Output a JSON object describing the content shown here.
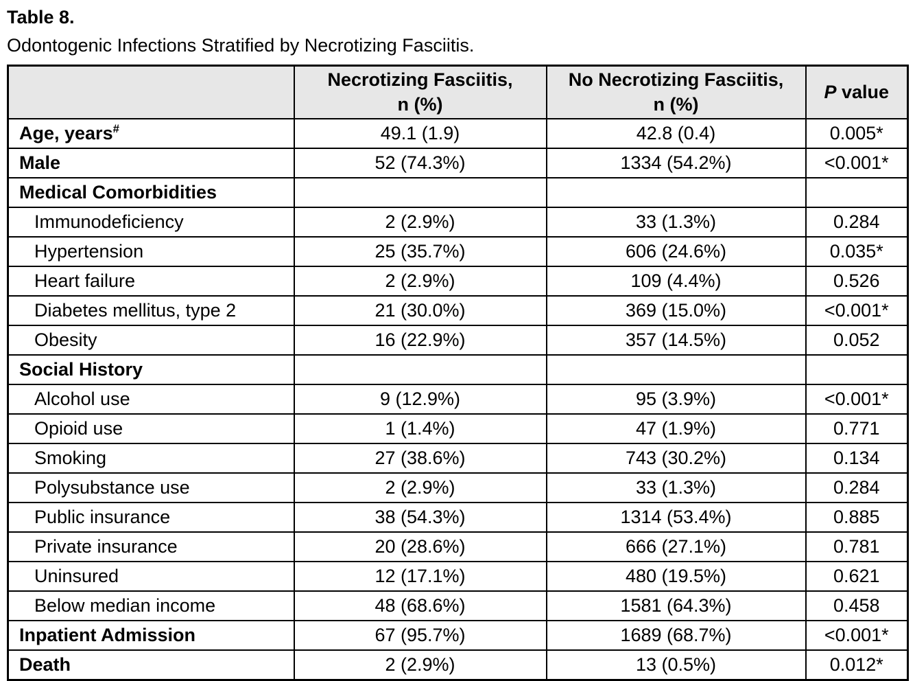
{
  "title": "Table 8.",
  "subtitle": "Odontogenic Infections Stratified by Necrotizing Fasciitis.",
  "colors": {
    "header_bg": "#e7e7e7",
    "border": "#000000",
    "text": "#000000"
  },
  "table": {
    "headers": {
      "row_label": "",
      "nf_line1": "Necrotizing Fasciitis,",
      "nf_line2": "n (%)",
      "no_nf_line1": "No Necrotizing Fasciitis,",
      "no_nf_line2": "n (%)",
      "p_italic": "P",
      "p_rest": " value"
    },
    "rows": [
      {
        "label": "Age, years",
        "sup": "#",
        "style": "bold",
        "nf": "49.1 (1.9)",
        "no_nf": "42.8 (0.4)",
        "p": "0.005*"
      },
      {
        "label": "Male",
        "style": "bold",
        "nf": "52 (74.3%)",
        "no_nf": "1334 (54.2%)",
        "p": "<0.001*"
      },
      {
        "label": "Medical Comorbidities",
        "style": "section",
        "nf": "",
        "no_nf": "",
        "p": ""
      },
      {
        "label": "Immunodeficiency",
        "style": "indent",
        "nf": "2 (2.9%)",
        "no_nf": "33 (1.3%)",
        "p": "0.284"
      },
      {
        "label": "Hypertension",
        "style": "indent",
        "nf": "25 (35.7%)",
        "no_nf": "606 (24.6%)",
        "p": "0.035*"
      },
      {
        "label": "Heart failure",
        "style": "indent",
        "nf": "2 (2.9%)",
        "no_nf": "109 (4.4%)",
        "p": "0.526"
      },
      {
        "label": "Diabetes mellitus, type 2",
        "style": "indent",
        "nf": "21 (30.0%)",
        "no_nf": "369 (15.0%)",
        "p": "<0.001*"
      },
      {
        "label": "Obesity",
        "style": "indent",
        "nf": "16 (22.9%)",
        "no_nf": "357 (14.5%)",
        "p": "0.052"
      },
      {
        "label": "Social History",
        "style": "section",
        "nf": "",
        "no_nf": "",
        "p": ""
      },
      {
        "label": "Alcohol use",
        "style": "indent",
        "nf": "9 (12.9%)",
        "no_nf": "95 (3.9%)",
        "p": "<0.001*"
      },
      {
        "label": "Opioid use",
        "style": "indent",
        "nf": "1 (1.4%)",
        "no_nf": "47 (1.9%)",
        "p": "0.771"
      },
      {
        "label": "Smoking",
        "style": "indent",
        "nf": "27 (38.6%)",
        "no_nf": "743 (30.2%)",
        "p": "0.134"
      },
      {
        "label": "Polysubstance use",
        "style": "indent",
        "nf": "2 (2.9%)",
        "no_nf": "33 (1.3%)",
        "p": "0.284"
      },
      {
        "label": "Public insurance",
        "style": "indent",
        "nf": "38 (54.3%)",
        "no_nf": "1314 (53.4%)",
        "p": "0.885"
      },
      {
        "label": "Private insurance",
        "style": "indent",
        "nf": "20 (28.6%)",
        "no_nf": "666 (27.1%)",
        "p": "0.781"
      },
      {
        "label": "Uninsured",
        "style": "indent",
        "nf": "12 (17.1%)",
        "no_nf": "480 (19.5%)",
        "p": "0.621"
      },
      {
        "label": "Below median income",
        "style": "indent",
        "nf": "48 (68.6%)",
        "no_nf": "1581 (64.3%)",
        "p": "0.458"
      },
      {
        "label": "Inpatient Admission",
        "style": "bold",
        "nf": "67 (95.7%)",
        "no_nf": "1689 (68.7%)",
        "p": "<0.001*"
      },
      {
        "label": "Death",
        "style": "bold",
        "nf": "2 (2.9%)",
        "no_nf": "13 (0.5%)",
        "p": "0.012*"
      }
    ]
  }
}
